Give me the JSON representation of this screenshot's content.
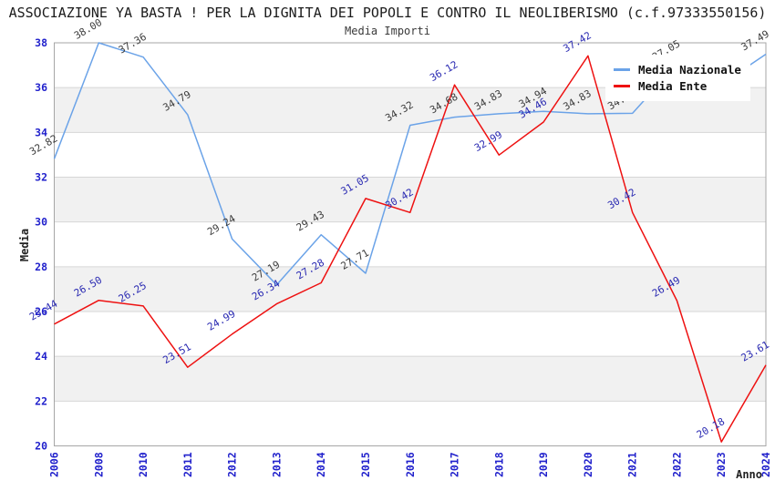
{
  "header": {
    "title": "ASSOCIAZIONE YA BASTA ! PER LA DIGNITA DEI POPOLI E CONTRO IL NEOLIBERISMO (c.f.97333550156)",
    "subtitle": "Media Importi"
  },
  "chart_data": {
    "type": "line",
    "title": "ASSOCIAZIONE YA BASTA ! PER LA DIGNITA DEI POPOLI E CONTRO IL NEOLIBERISMO (c.f.97333550156)",
    "subtitle": "Media Importi",
    "xlabel": "Anno",
    "ylabel": "Media",
    "ylim": [
      20,
      38
    ],
    "yticks": [
      20,
      22,
      24,
      26,
      28,
      30,
      32,
      34,
      36,
      38
    ],
    "grid": "horizontal-gridlines-with-alternating-gray-bands",
    "legend_position": "top-right",
    "axis_tick_color": "#2121cc",
    "band_color": "#f1f1f1",
    "categories": [
      "2006",
      "2008",
      "2010",
      "2011",
      "2012",
      "2013",
      "2014",
      "2015",
      "2016",
      "2017",
      "2018",
      "2019",
      "2020",
      "2021",
      "2022",
      "2023",
      "2024"
    ],
    "series": [
      {
        "name": "Media Nazionale",
        "color": "#6ba3e8",
        "label_color": "#3d3d3d",
        "values": [
          32.82,
          38.0,
          37.36,
          34.79,
          29.24,
          27.19,
          29.43,
          27.71,
          34.32,
          34.68,
          34.83,
          34.94,
          34.83,
          34.85,
          37.05,
          36.15,
          37.49
        ],
        "labels": [
          "32.82",
          "38.00",
          "37.36",
          "34.79",
          "29.24",
          "27.19",
          "29.43",
          "27.71",
          "34.32",
          "34.68",
          "34.83",
          "34.94",
          "34.83",
          "34.85",
          "37.05",
          "",
          "37.49"
        ]
      },
      {
        "name": "Media Ente",
        "color": "#ee1111",
        "label_color": "#2a2ab2",
        "values": [
          25.44,
          26.5,
          26.25,
          23.51,
          24.99,
          26.34,
          27.28,
          31.05,
          30.42,
          36.12,
          32.99,
          34.46,
          37.42,
          30.42,
          26.49,
          20.18,
          23.61
        ],
        "labels": [
          "25.44",
          "26.50",
          "26.25",
          "23.51",
          "24.99",
          "26.34",
          "27.28",
          "31.05",
          "30.42",
          "36.12",
          "32.99",
          "34.46",
          "37.42",
          "30.42",
          "26.49",
          "20.18",
          "23.61"
        ]
      }
    ]
  },
  "legend": {
    "items": [
      {
        "label": "Media Nazionale"
      },
      {
        "label": "Media Ente"
      }
    ]
  }
}
